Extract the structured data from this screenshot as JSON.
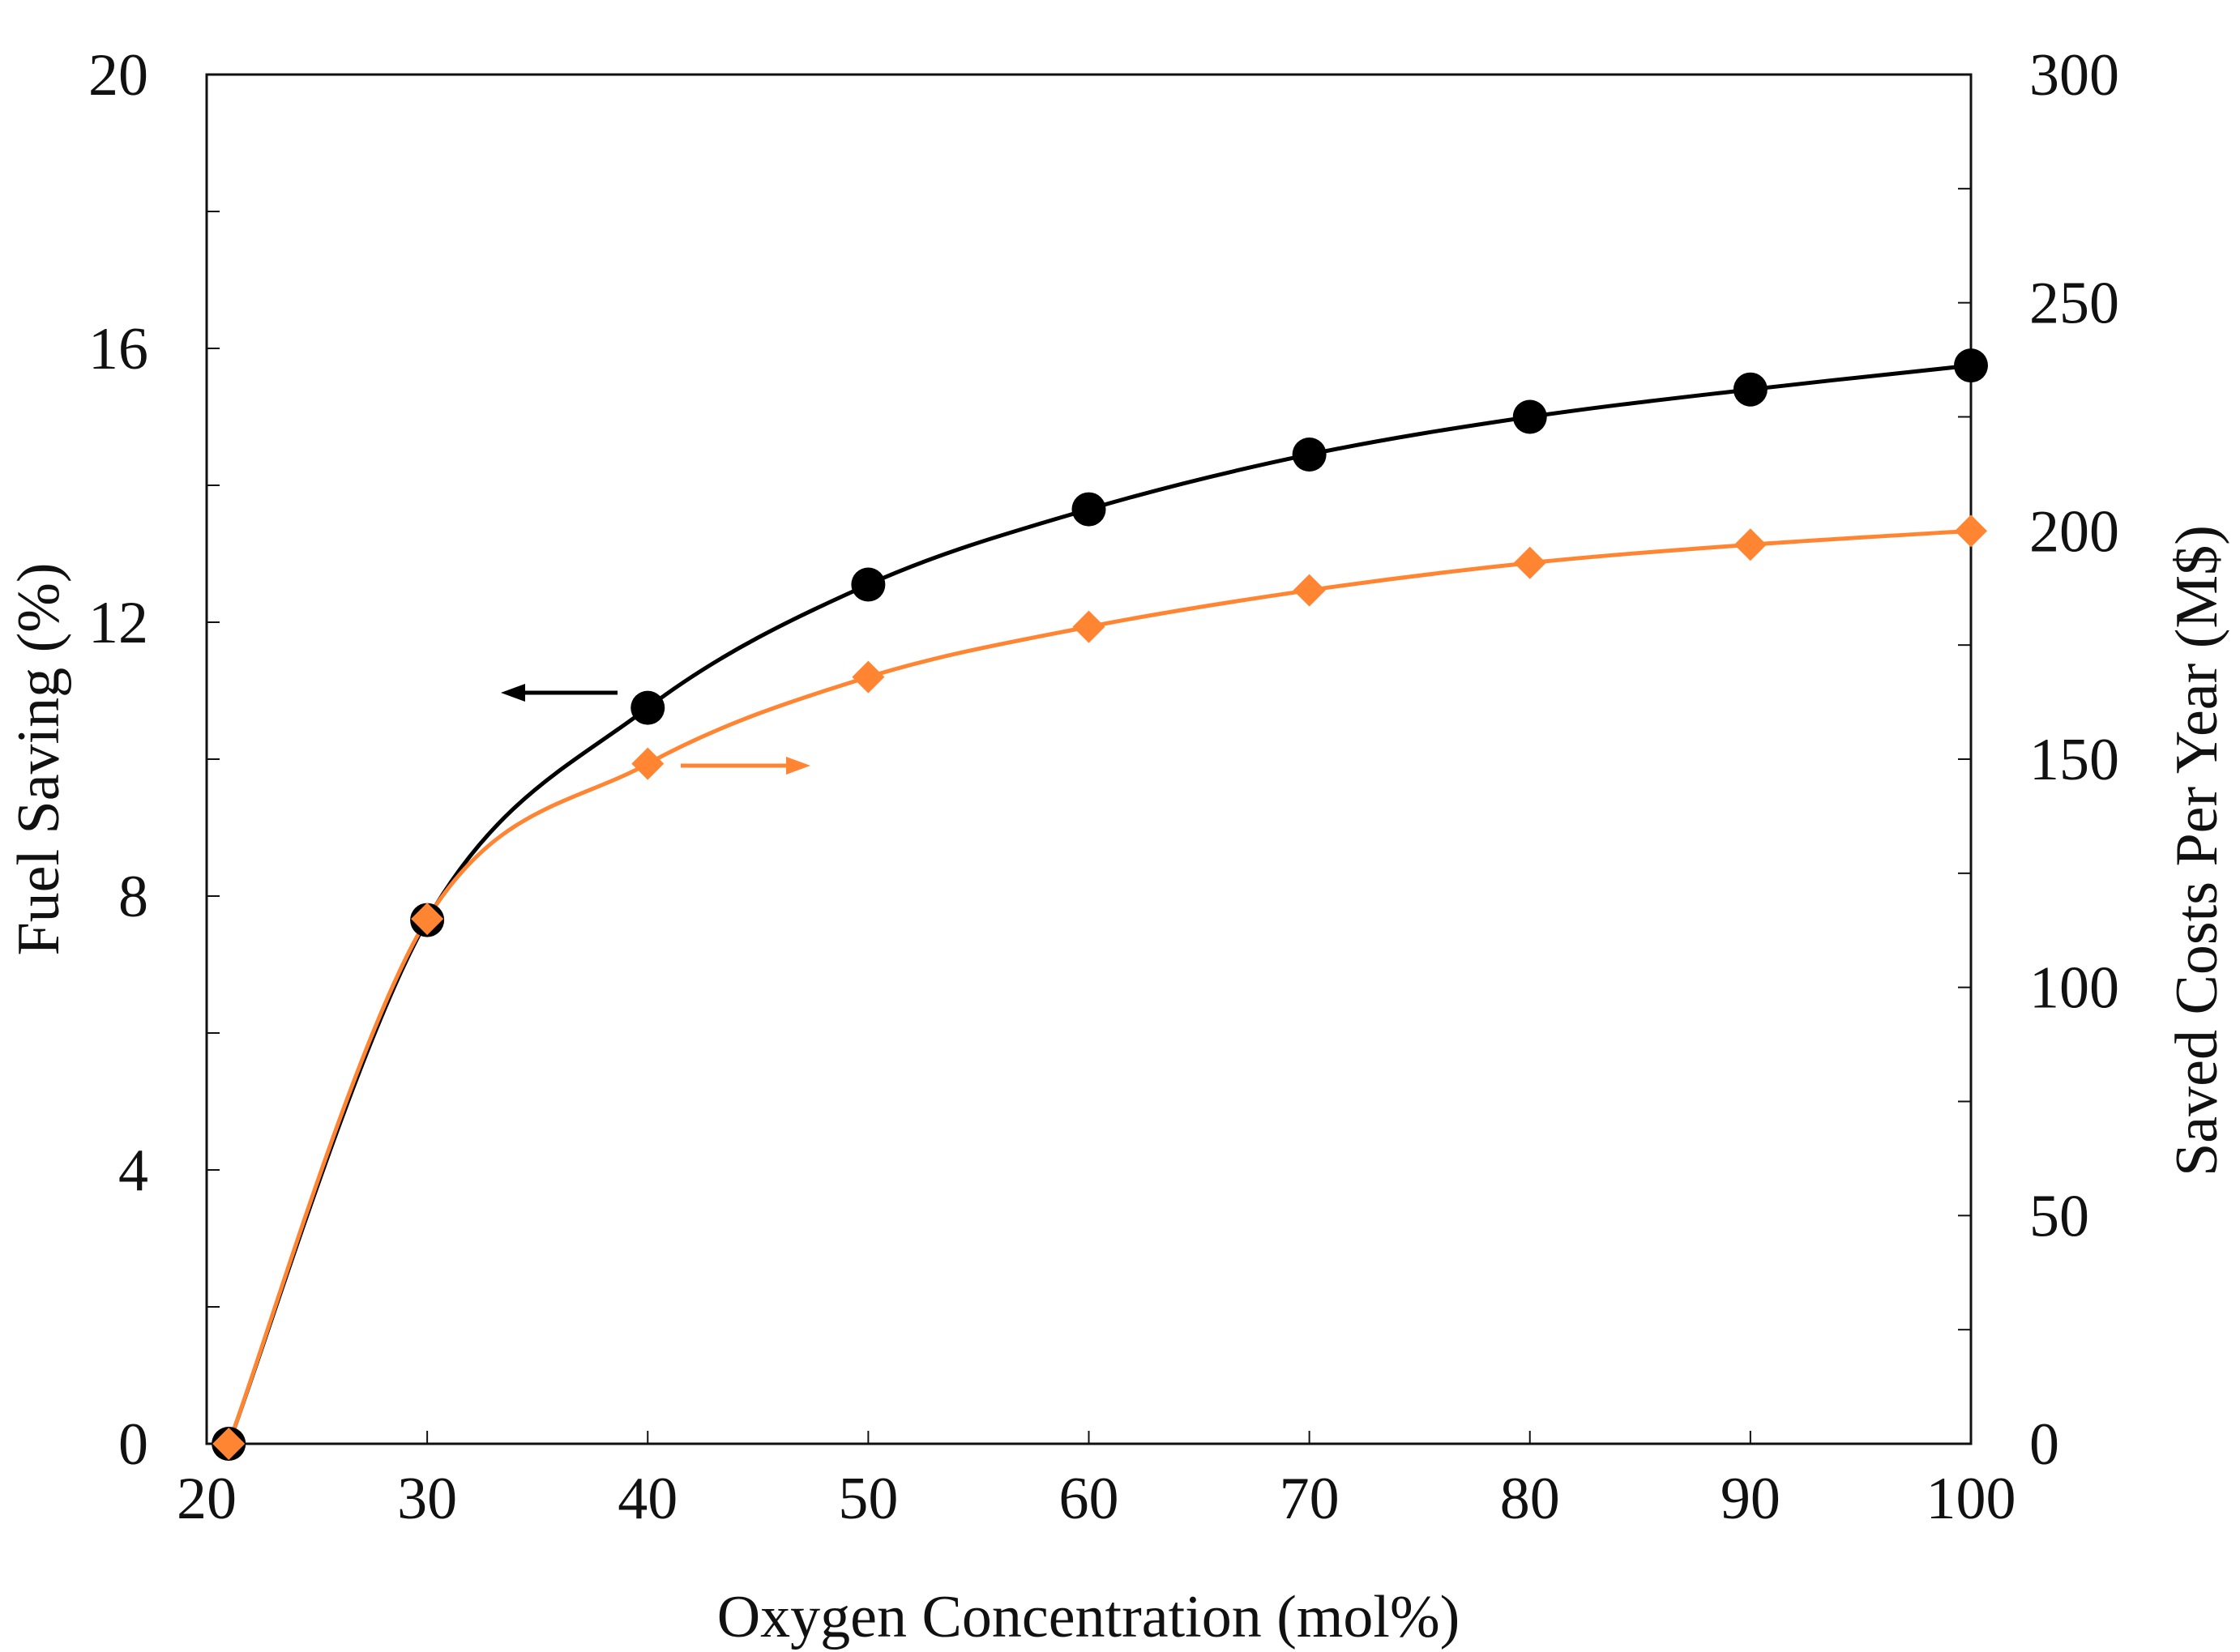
{
  "chart_data": {
    "type": "line",
    "title": "",
    "xlabel": "Oxygen Concentration (mol%)",
    "ylabel": "Fuel Saving (%)",
    "y2label": "Saved Costs Per Year  (M$)",
    "xlim": [
      20,
      100
    ],
    "ylim": [
      0,
      20
    ],
    "y2lim": [
      0,
      300
    ],
    "xticks": [
      "20",
      "30",
      "40",
      "50",
      "60",
      "70",
      "80",
      "90",
      "100"
    ],
    "yticks": [
      "0",
      "4",
      "8",
      "12",
      "16",
      "20"
    ],
    "y2ticks": [
      "0",
      "50",
      "100",
      "150",
      "200",
      "250",
      "300"
    ],
    "grid": false,
    "series": [
      {
        "name": "Fuel Saving",
        "axis": "left",
        "marker": "circle",
        "color": "#000000",
        "x": [
          21,
          30,
          40,
          50,
          60,
          70,
          80,
          90,
          100
        ],
        "values": [
          0,
          7.65,
          10.75,
          12.55,
          13.65,
          14.45,
          15.0,
          15.4,
          15.75
        ],
        "annotation": "arrow pointing left (left axis)"
      },
      {
        "name": "Saved Costs Per Year",
        "axis": "right",
        "marker": "diamond",
        "color": "#FF8533",
        "x": [
          21,
          30,
          40,
          50,
          60,
          70,
          80,
          90,
          100
        ],
        "values": [
          0,
          115,
          149,
          168,
          179,
          187,
          193,
          197,
          200
        ],
        "annotation": "arrow pointing right (right axis)"
      }
    ]
  }
}
